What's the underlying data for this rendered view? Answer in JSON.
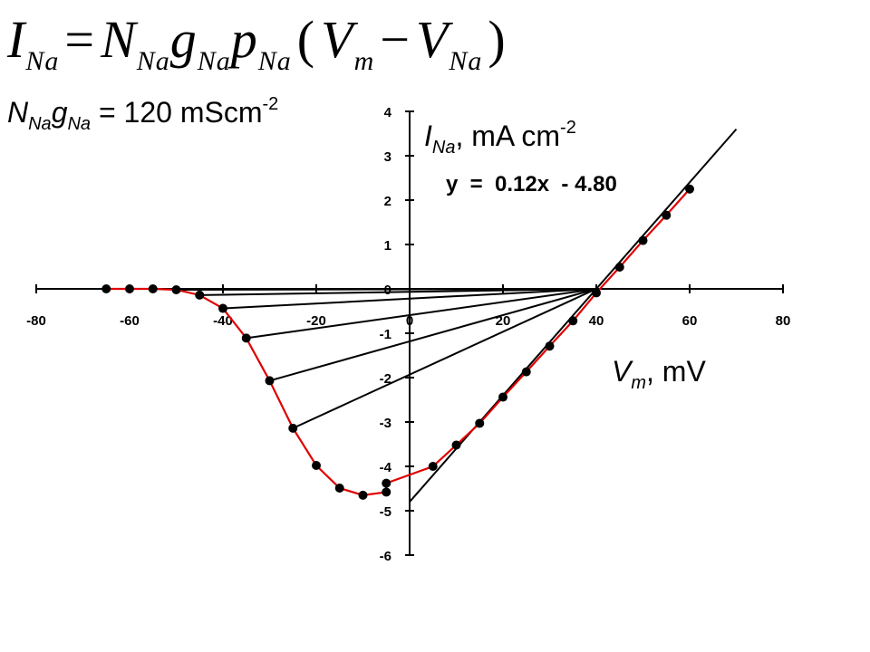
{
  "equation": {
    "I": "I",
    "I_sub": "Na",
    "eq": "=",
    "N": "N",
    "N_sub": "Na",
    "g": "g",
    "g_sub": "Na",
    "p": "p",
    "p_sub": "Na",
    "open": "(",
    "V": "V",
    "Vm_sub": "m",
    "minus": "−",
    "V2": "V",
    "VNa_sub": "Na",
    "close": ")"
  },
  "param": {
    "N": "N",
    "N_sub": "Na",
    "g": "g",
    "g_sub": "Na",
    "rest": " = 120 mScm",
    "exp": "-2"
  },
  "fit_equation": "y  =  0.12x  - 4.80",
  "chart_data": {
    "type": "line",
    "x_tick_labels": [
      "-80",
      "-60",
      "-40",
      "-20",
      "0",
      "20",
      "40",
      "60",
      "80"
    ],
    "y_tick_labels": [
      "4",
      "3",
      "2",
      "1",
      "0",
      "-1",
      "-2",
      "-3",
      "-4",
      "-5",
      "-6"
    ],
    "xlim": [
      -80,
      80
    ],
    "ylim": [
      -6,
      4
    ],
    "xlabel": {
      "main": "V",
      "sub": "m",
      "rest": ", mV"
    },
    "ylabel": {
      "main": "I",
      "sub": "Na",
      "rest": ", mA cm",
      "exp": "-2"
    },
    "series": [
      {
        "color": "#e00000",
        "marker_color": "#000000",
        "x": [
          -65,
          -60,
          -55,
          -50,
          -45,
          -40,
          -35,
          -30,
          -25,
          -20,
          -15,
          -10,
          -5,
          -5,
          5,
          10,
          15,
          20,
          25,
          30,
          35,
          40,
          45,
          50,
          55,
          60
        ],
        "y": [
          0.0,
          0.0,
          0.0,
          -0.02,
          -0.14,
          -0.44,
          -1.11,
          -2.07,
          -3.14,
          -3.98,
          -4.49,
          -4.65,
          -4.58,
          -4.38,
          -4.0,
          -3.52,
          -3.03,
          -2.44,
          -1.87,
          -1.29,
          -0.72,
          -0.09,
          0.49,
          1.09,
          1.66,
          2.25
        ]
      }
    ],
    "fit_line": {
      "slope": 0.12,
      "intercept": -4.8,
      "x_range": [
        0,
        70
      ]
    },
    "chord_lines": {
      "end": [
        40,
        0
      ],
      "starts": [
        [
          -65,
          0.0
        ],
        [
          -60,
          0.0
        ],
        [
          -55,
          0.0
        ],
        [
          -50,
          -0.02
        ],
        [
          -45,
          -0.14
        ],
        [
          -40,
          -0.44
        ],
        [
          -35,
          -1.11
        ],
        [
          -30,
          -2.07
        ],
        [
          -25,
          -3.14
        ]
      ]
    }
  }
}
